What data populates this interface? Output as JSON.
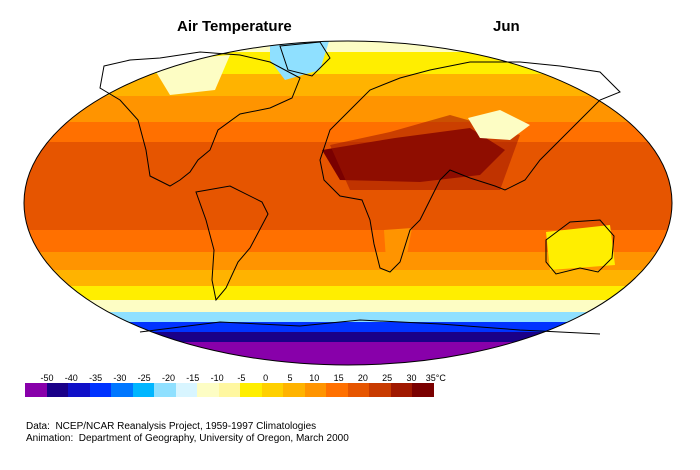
{
  "title": "Air Temperature",
  "month": "Jun",
  "legend": {
    "unit": "°C",
    "ticks": [
      "-50",
      "-40",
      "-35",
      "-30",
      "-25",
      "-20",
      "-15",
      "-10",
      "-5",
      "0",
      "5",
      "10",
      "15",
      "20",
      "25",
      "30",
      "35°C"
    ],
    "colors": [
      "#8800aa",
      "#1a0088",
      "#1010c8",
      "#0033ff",
      "#0077ff",
      "#00b6ff",
      "#8fe0ff",
      "#d8f5ff",
      "#fdfdc4",
      "#fff7a0",
      "#ffee00",
      "#ffd000",
      "#ffb300",
      "#ff9400",
      "#ff7000",
      "#e65500",
      "#c83a00",
      "#a01800",
      "#7a0000"
    ]
  },
  "credits": {
    "line1": "Data:  NCEP/NCAR Reanalysis Project, 1959-1997 Climatologies",
    "line2": "Animation:  Department of Geography, University of Oregon, March 2000"
  },
  "colors": {
    "polar": "#8800aa",
    "deep_blue": "#1a0088",
    "blue": "#0033ff",
    "light_blue": "#8fe0ff",
    "pale_yellow": "#fdfdc4",
    "yellow": "#ffee00",
    "gold": "#ffb300",
    "orange": "#ff9400",
    "dark_orange": "#ff7000",
    "red_orange": "#e65500",
    "red": "#c83a00",
    "dark_red": "#a01800",
    "maroon": "#7a0000"
  }
}
